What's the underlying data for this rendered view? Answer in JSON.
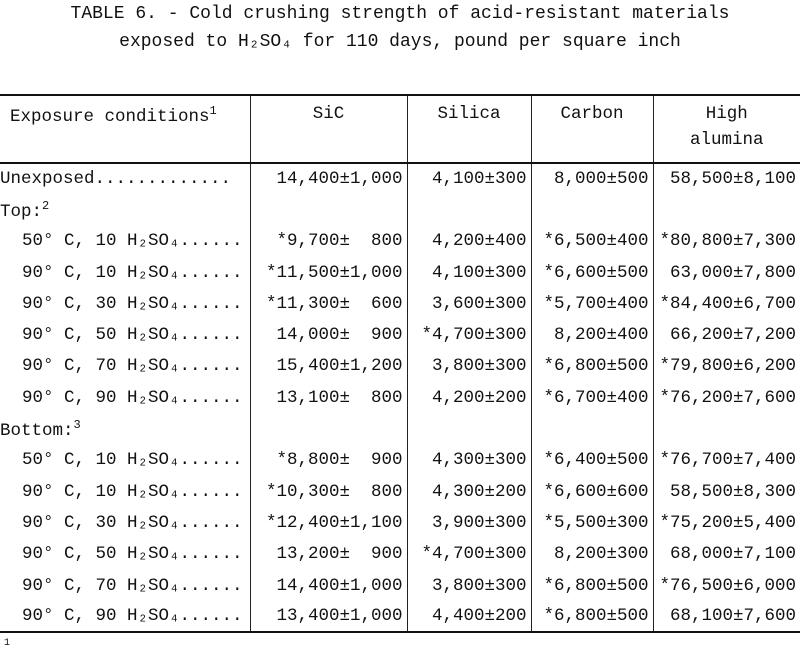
{
  "title": {
    "line1": "TABLE 6. - Cold crushing strength of acid-resistant materials",
    "line2": "exposed to H₂SO₄ for 110 days, pound per square inch"
  },
  "table": {
    "headers": [
      {
        "label": "Exposure conditions",
        "sup": "1"
      },
      {
        "label": "SiC"
      },
      {
        "label": "Silica"
      },
      {
        "label": "Carbon"
      },
      {
        "label": "High",
        "label2": "alumina"
      }
    ],
    "rows": [
      {
        "cond": "Unexposed.............",
        "values": [
          "14,400±1,000",
          "4,100±300",
          "8,000±500",
          "58,500±8,100"
        ]
      },
      {
        "cond": "Top:",
        "sup": "2",
        "group": true
      },
      {
        "cond": "50° C, 10 H₂SO₄......",
        "sub": true,
        "values": [
          "*9,700±  800",
          "4,200±400",
          "*6,500±400",
          "*80,800±7,300"
        ]
      },
      {
        "cond": "90° C, 10 H₂SO₄......",
        "sub": true,
        "values": [
          "*11,500±1,000",
          "4,100±300",
          "*6,600±500",
          "63,000±7,800"
        ]
      },
      {
        "cond": "90° C, 30 H₂SO₄......",
        "sub": true,
        "values": [
          "*11,300±  600",
          "3,600±300",
          "*5,700±400",
          "*84,400±6,700"
        ]
      },
      {
        "cond": "90° C, 50 H₂SO₄......",
        "sub": true,
        "values": [
          "14,000±  900",
          "*4,700±300",
          "8,200±400",
          "66,200±7,200"
        ]
      },
      {
        "cond": "90° C, 70 H₂SO₄......",
        "sub": true,
        "values": [
          "15,400±1,200",
          "3,800±300",
          "*6,800±500",
          "*79,800±6,200"
        ]
      },
      {
        "cond": "90° C, 90 H₂SO₄......",
        "sub": true,
        "values": [
          "13,100±  800",
          "4,200±200",
          "*6,700±400",
          "*76,200±7,600"
        ]
      },
      {
        "cond": "Bottom:",
        "sup": "3",
        "group": true
      },
      {
        "cond": "50° C, 10 H₂SO₄......",
        "sub": true,
        "values": [
          "*8,800±  900",
          "4,300±300",
          "*6,400±500",
          "*76,700±7,400"
        ]
      },
      {
        "cond": "90° C, 10 H₂SO₄......",
        "sub": true,
        "values": [
          "*10,300±  800",
          "4,300±200",
          "*6,600±600",
          "58,500±8,300"
        ]
      },
      {
        "cond": "90° C, 30 H₂SO₄......",
        "sub": true,
        "values": [
          "*12,400±1,100",
          "3,900±300",
          "*5,500±300",
          "*75,200±5,400"
        ]
      },
      {
        "cond": "90° C, 50 H₂SO₄......",
        "sub": true,
        "values": [
          "13,200±  900",
          "*4,700±300",
          "8,200±300",
          "68,000±7,100"
        ]
      },
      {
        "cond": "90° C, 70 H₂SO₄......",
        "sub": true,
        "values": [
          "14,400±1,000",
          "3,800±300",
          "*6,800±500",
          "*76,500±6,000"
        ]
      },
      {
        "cond": "90° C, 90 H₂SO₄......",
        "sub": true,
        "values": [
          "13,400±1,000",
          "4,400±200",
          "*6,800±500",
          "68,100±7,600"
        ]
      }
    ]
  },
  "footnote_marker": "1"
}
